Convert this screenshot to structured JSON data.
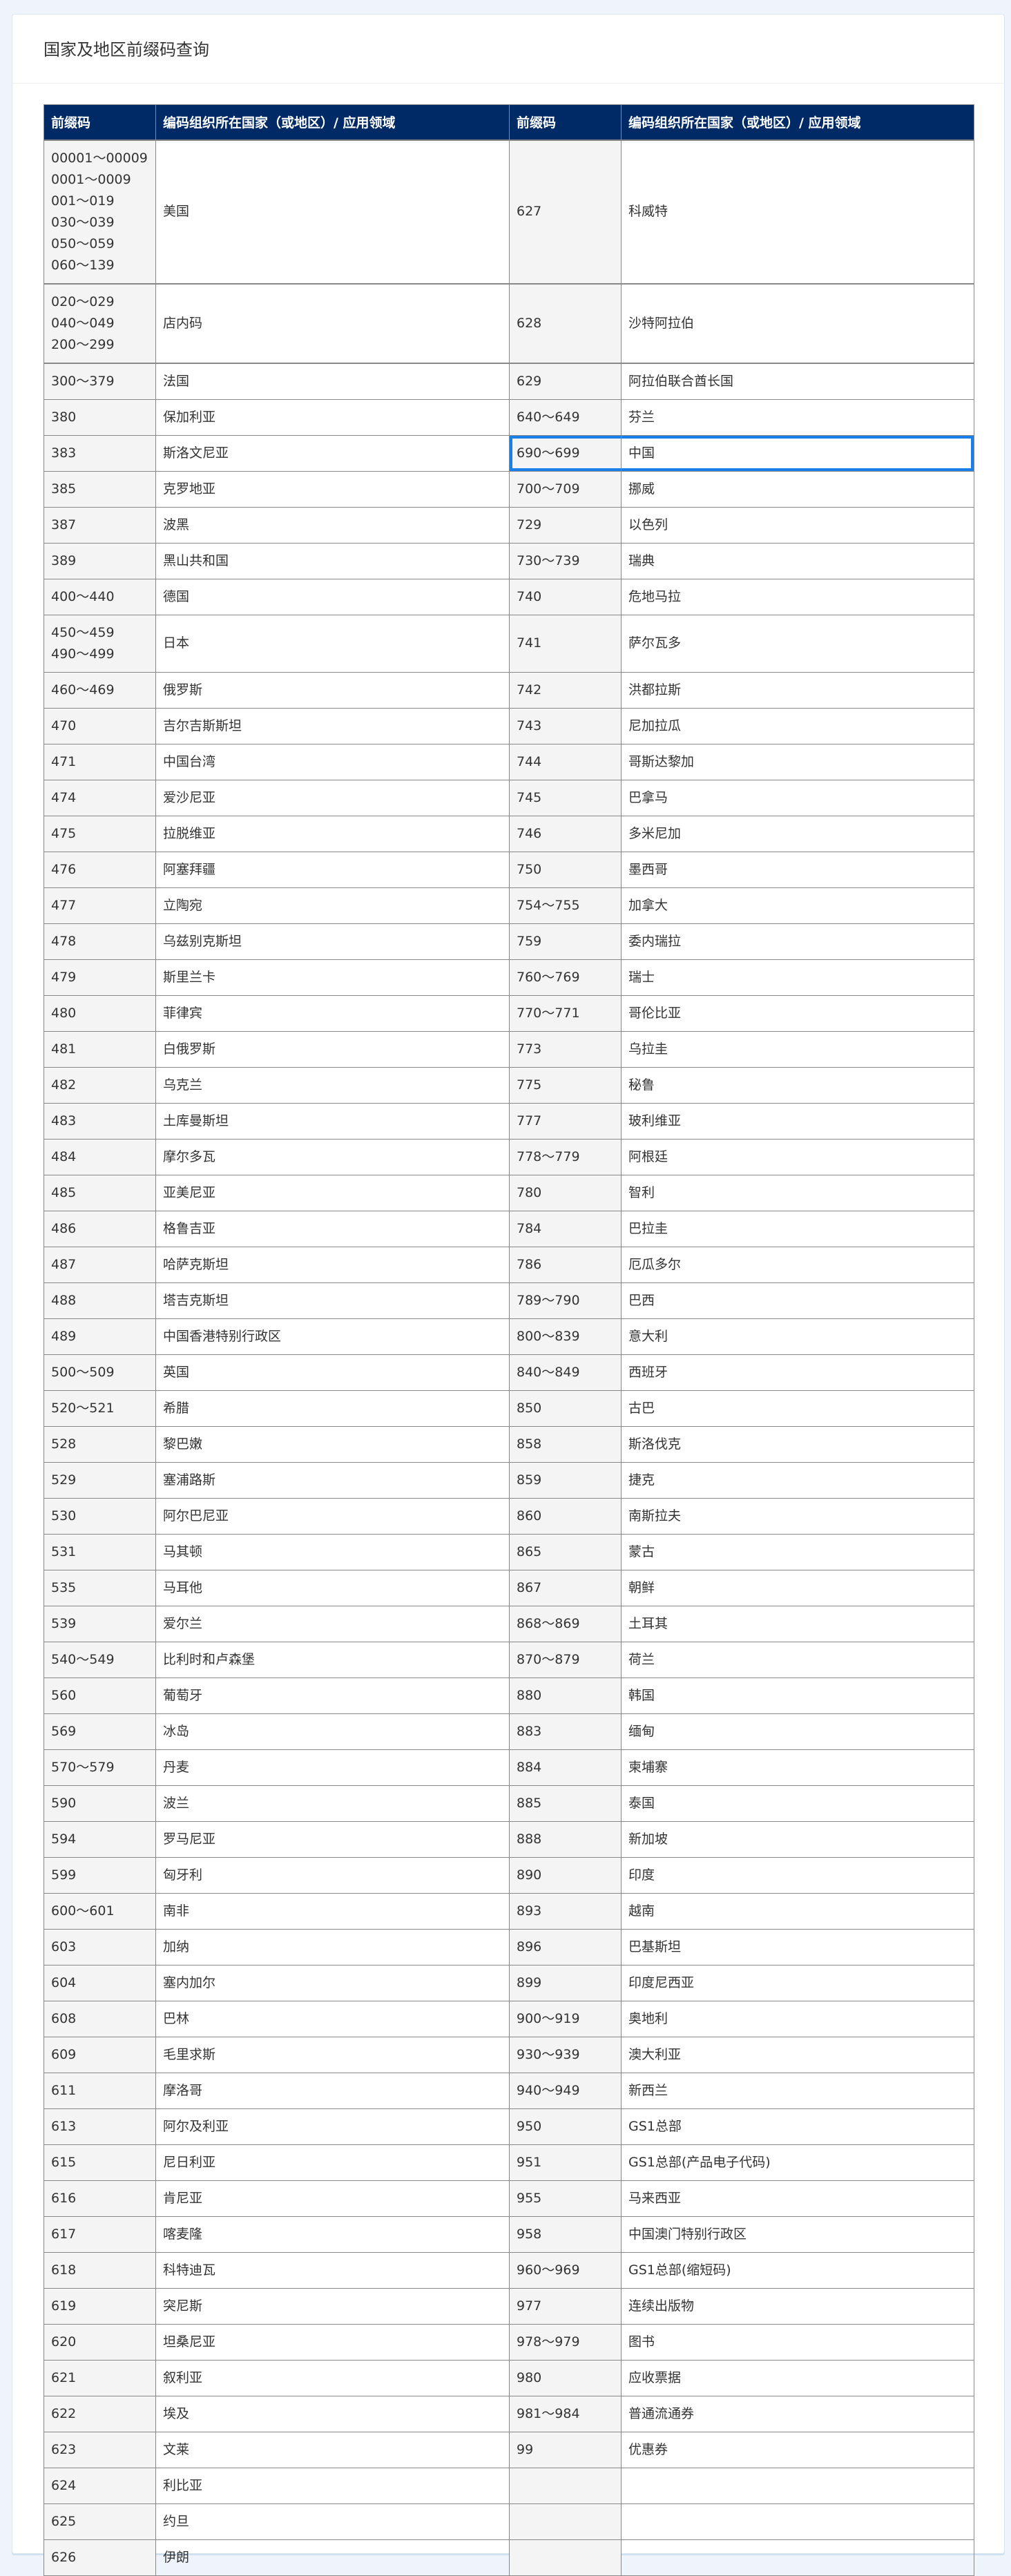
{
  "page": {
    "title": "国家及地区前缀码查询"
  },
  "highlight_color": "#1a7fe8",
  "header_color": "#002a66",
  "table": {
    "headers": [
      "前缀码",
      "编码组织所在国家（或地区）/ 应用领域",
      "前缀码",
      "编码组织所在国家（或地区）/ 应用领域"
    ],
    "selected_cell": {
      "row": 4,
      "prefix": "690～699",
      "name": "中国"
    },
    "rows": [
      [
        [
          "00001～00009",
          "0001～0009",
          "001～019",
          "030～039",
          "050～059",
          "060～139"
        ],
        [
          "美国"
        ],
        [
          "627"
        ],
        [
          "科威特"
        ]
      ],
      [
        [
          "020～029",
          "040～049",
          "200～299"
        ],
        [
          "店内码"
        ],
        [
          "628"
        ],
        [
          "沙特阿拉伯"
        ]
      ],
      [
        [
          "300～379"
        ],
        [
          "法国"
        ],
        [
          "629"
        ],
        [
          "阿拉伯联合酋长国"
        ]
      ],
      [
        [
          "380"
        ],
        [
          "保加利亚"
        ],
        [
          "640～649"
        ],
        [
          "芬兰"
        ]
      ],
      [
        [
          "383"
        ],
        [
          "斯洛文尼亚"
        ],
        [
          "690～699"
        ],
        [
          "中国"
        ]
      ],
      [
        [
          "385"
        ],
        [
          "克罗地亚"
        ],
        [
          "700～709"
        ],
        [
          "挪威"
        ]
      ],
      [
        [
          "387"
        ],
        [
          "波黑"
        ],
        [
          "729"
        ],
        [
          "以色列"
        ]
      ],
      [
        [
          "389"
        ],
        [
          "黑山共和国"
        ],
        [
          "730～739"
        ],
        [
          "瑞典"
        ]
      ],
      [
        [
          "400～440"
        ],
        [
          "德国"
        ],
        [
          "740"
        ],
        [
          "危地马拉"
        ]
      ],
      [
        [
          "450～459",
          "490～499"
        ],
        [
          "日本"
        ],
        [
          "741"
        ],
        [
          "萨尔瓦多"
        ]
      ],
      [
        [
          "460～469"
        ],
        [
          "俄罗斯"
        ],
        [
          "742"
        ],
        [
          "洪都拉斯"
        ]
      ],
      [
        [
          "470"
        ],
        [
          "吉尔吉斯斯坦"
        ],
        [
          "743"
        ],
        [
          "尼加拉瓜"
        ]
      ],
      [
        [
          "471"
        ],
        [
          "中国台湾"
        ],
        [
          "744"
        ],
        [
          "哥斯达黎加"
        ]
      ],
      [
        [
          "474"
        ],
        [
          "爱沙尼亚"
        ],
        [
          "745"
        ],
        [
          "巴拿马"
        ]
      ],
      [
        [
          "475"
        ],
        [
          "拉脱维亚"
        ],
        [
          "746"
        ],
        [
          "多米尼加"
        ]
      ],
      [
        [
          "476"
        ],
        [
          "阿塞拜疆"
        ],
        [
          "750"
        ],
        [
          "墨西哥"
        ]
      ],
      [
        [
          "477"
        ],
        [
          "立陶宛"
        ],
        [
          "754～755"
        ],
        [
          "加拿大"
        ]
      ],
      [
        [
          "478"
        ],
        [
          "乌兹别克斯坦"
        ],
        [
          "759"
        ],
        [
          "委内瑞拉"
        ]
      ],
      [
        [
          "479"
        ],
        [
          "斯里兰卡"
        ],
        [
          "760～769"
        ],
        [
          "瑞士"
        ]
      ],
      [
        [
          "480"
        ],
        [
          "菲律宾"
        ],
        [
          "770～771"
        ],
        [
          "哥伦比亚"
        ]
      ],
      [
        [
          "481"
        ],
        [
          "白俄罗斯"
        ],
        [
          "773"
        ],
        [
          "乌拉圭"
        ]
      ],
      [
        [
          "482"
        ],
        [
          "乌克兰"
        ],
        [
          "775"
        ],
        [
          "秘鲁"
        ]
      ],
      [
        [
          "483"
        ],
        [
          "土库曼斯坦"
        ],
        [
          "777"
        ],
        [
          "玻利维亚"
        ]
      ],
      [
        [
          "484"
        ],
        [
          "摩尔多瓦"
        ],
        [
          "778～779"
        ],
        [
          "阿根廷"
        ]
      ],
      [
        [
          "485"
        ],
        [
          "亚美尼亚"
        ],
        [
          "780"
        ],
        [
          "智利"
        ]
      ],
      [
        [
          "486"
        ],
        [
          "格鲁吉亚"
        ],
        [
          "784"
        ],
        [
          "巴拉圭"
        ]
      ],
      [
        [
          "487"
        ],
        [
          "哈萨克斯坦"
        ],
        [
          "786"
        ],
        [
          "厄瓜多尔"
        ]
      ],
      [
        [
          "488"
        ],
        [
          "塔吉克斯坦"
        ],
        [
          "789～790"
        ],
        [
          "巴西"
        ]
      ],
      [
        [
          "489"
        ],
        [
          "中国香港特别行政区"
        ],
        [
          "800～839"
        ],
        [
          "意大利"
        ]
      ],
      [
        [
          "500～509"
        ],
        [
          "英国"
        ],
        [
          "840～849"
        ],
        [
          "西班牙"
        ]
      ],
      [
        [
          "520～521"
        ],
        [
          "希腊"
        ],
        [
          "850"
        ],
        [
          "古巴"
        ]
      ],
      [
        [
          "528"
        ],
        [
          "黎巴嫩"
        ],
        [
          "858"
        ],
        [
          "斯洛伐克"
        ]
      ],
      [
        [
          "529"
        ],
        [
          "塞浦路斯"
        ],
        [
          "859"
        ],
        [
          "捷克"
        ]
      ],
      [
        [
          "530"
        ],
        [
          "阿尔巴尼亚"
        ],
        [
          "860"
        ],
        [
          "南斯拉夫"
        ]
      ],
      [
        [
          "531"
        ],
        [
          "马其顿"
        ],
        [
          "865"
        ],
        [
          "蒙古"
        ]
      ],
      [
        [
          "535"
        ],
        [
          "马耳他"
        ],
        [
          "867"
        ],
        [
          "朝鲜"
        ]
      ],
      [
        [
          "539"
        ],
        [
          "爱尔兰"
        ],
        [
          "868～869"
        ],
        [
          "土耳其"
        ]
      ],
      [
        [
          "540～549"
        ],
        [
          "比利时和卢森堡"
        ],
        [
          "870～879"
        ],
        [
          "荷兰"
        ]
      ],
      [
        [
          "560"
        ],
        [
          "葡萄牙"
        ],
        [
          "880"
        ],
        [
          "韩国"
        ]
      ],
      [
        [
          "569"
        ],
        [
          "冰岛"
        ],
        [
          "883"
        ],
        [
          "缅甸"
        ]
      ],
      [
        [
          "570～579"
        ],
        [
          "丹麦"
        ],
        [
          "884"
        ],
        [
          "柬埔寨"
        ]
      ],
      [
        [
          "590"
        ],
        [
          "波兰"
        ],
        [
          "885"
        ],
        [
          "泰国"
        ]
      ],
      [
        [
          "594"
        ],
        [
          "罗马尼亚"
        ],
        [
          "888"
        ],
        [
          "新加坡"
        ]
      ],
      [
        [
          "599"
        ],
        [
          "匈牙利"
        ],
        [
          "890"
        ],
        [
          "印度"
        ]
      ],
      [
        [
          "600～601"
        ],
        [
          "南非"
        ],
        [
          "893"
        ],
        [
          "越南"
        ]
      ],
      [
        [
          "603"
        ],
        [
          "加纳"
        ],
        [
          "896"
        ],
        [
          "巴基斯坦"
        ]
      ],
      [
        [
          "604"
        ],
        [
          "塞内加尔"
        ],
        [
          "899"
        ],
        [
          "印度尼西亚"
        ]
      ],
      [
        [
          "608"
        ],
        [
          "巴林"
        ],
        [
          "900～919"
        ],
        [
          "奥地利"
        ]
      ],
      [
        [
          "609"
        ],
        [
          "毛里求斯"
        ],
        [
          "930～939"
        ],
        [
          "澳大利亚"
        ]
      ],
      [
        [
          "611"
        ],
        [
          "摩洛哥"
        ],
        [
          "940～949"
        ],
        [
          "新西兰"
        ]
      ],
      [
        [
          "613"
        ],
        [
          "阿尔及利亚"
        ],
        [
          "950"
        ],
        [
          "GS1总部"
        ]
      ],
      [
        [
          "615"
        ],
        [
          "尼日利亚"
        ],
        [
          "951"
        ],
        [
          "GS1总部(产品电子代码)"
        ]
      ],
      [
        [
          "616"
        ],
        [
          "肯尼亚"
        ],
        [
          "955"
        ],
        [
          "马来西亚"
        ]
      ],
      [
        [
          "617"
        ],
        [
          "喀麦隆"
        ],
        [
          "958"
        ],
        [
          "中国澳门特别行政区"
        ]
      ],
      [
        [
          "618"
        ],
        [
          "科特迪瓦"
        ],
        [
          "960～969"
        ],
        [
          "GS1总部(缩短码)"
        ]
      ],
      [
        [
          "619"
        ],
        [
          "突尼斯"
        ],
        [
          "977"
        ],
        [
          "连续出版物"
        ]
      ],
      [
        [
          "620"
        ],
        [
          "坦桑尼亚"
        ],
        [
          "978～979"
        ],
        [
          "图书"
        ]
      ],
      [
        [
          "621"
        ],
        [
          "叙利亚"
        ],
        [
          "980"
        ],
        [
          "应收票据"
        ]
      ],
      [
        [
          "622"
        ],
        [
          "埃及"
        ],
        [
          "981～984"
        ],
        [
          "普通流通券"
        ]
      ],
      [
        [
          "623"
        ],
        [
          "文莱"
        ],
        [
          "99"
        ],
        [
          "优惠券"
        ]
      ],
      [
        [
          "624"
        ],
        [
          "利比亚"
        ],
        [],
        []
      ],
      [
        [
          "625"
        ],
        [
          "约旦"
        ],
        [],
        []
      ],
      [
        [
          "626"
        ],
        [
          "伊朗"
        ],
        [],
        []
      ]
    ]
  }
}
